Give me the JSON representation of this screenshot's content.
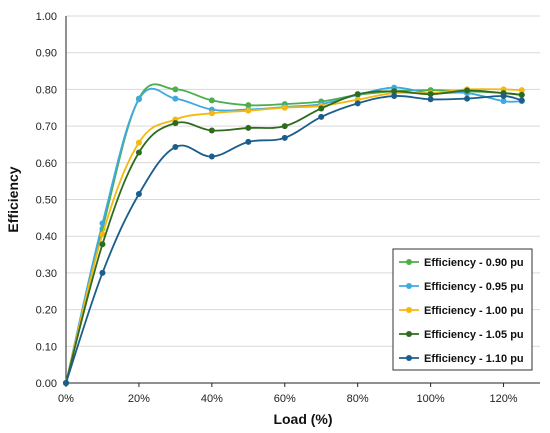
{
  "chart_data": {
    "type": "line",
    "title": "",
    "xlabel": "Load (%)",
    "ylabel": "Efficiency",
    "x": [
      0,
      10,
      20,
      30,
      40,
      50,
      60,
      70,
      80,
      90,
      100,
      110,
      120,
      125
    ],
    "x_ticks": [
      "0%",
      "20%",
      "40%",
      "60%",
      "80%",
      "100%",
      "120%"
    ],
    "y_ticks": [
      "0.00",
      "0.10",
      "0.20",
      "0.30",
      "0.40",
      "0.50",
      "0.60",
      "0.70",
      "0.80",
      "0.90",
      "1.00"
    ],
    "xlim": [
      0,
      130
    ],
    "ylim": [
      0,
      1.0
    ],
    "grid": "horizontal",
    "legend_position": "bottom-right",
    "series": [
      {
        "name": "Efficiency - 0.90 pu",
        "color": "#4cae4c",
        "values": [
          0.0,
          0.42,
          0.775,
          0.8,
          0.77,
          0.757,
          0.76,
          0.767,
          0.785,
          0.795,
          0.798,
          0.795,
          0.79,
          0.785
        ]
      },
      {
        "name": "Efficiency - 0.95 pu",
        "color": "#3fa9e0",
        "values": [
          0.0,
          0.435,
          0.773,
          0.775,
          0.745,
          0.745,
          0.752,
          0.76,
          0.785,
          0.805,
          0.79,
          0.79,
          0.768,
          0.768
        ]
      },
      {
        "name": "Efficiency - 1.00 pu",
        "color": "#f5b80f",
        "values": [
          0.0,
          0.405,
          0.655,
          0.718,
          0.735,
          0.742,
          0.75,
          0.755,
          0.772,
          0.79,
          0.79,
          0.8,
          0.8,
          0.798
        ]
      },
      {
        "name": "Efficiency - 1.05 pu",
        "color": "#2e6b1e",
        "values": [
          0.0,
          0.378,
          0.628,
          0.708,
          0.688,
          0.695,
          0.7,
          0.748,
          0.787,
          0.795,
          0.787,
          0.797,
          0.79,
          0.785
        ]
      },
      {
        "name": "Efficiency - 1.10 pu",
        "color": "#1b5e8c",
        "values": [
          0.0,
          0.3,
          0.515,
          0.643,
          0.617,
          0.657,
          0.668,
          0.725,
          0.762,
          0.782,
          0.773,
          0.775,
          0.782,
          0.77
        ]
      }
    ]
  }
}
